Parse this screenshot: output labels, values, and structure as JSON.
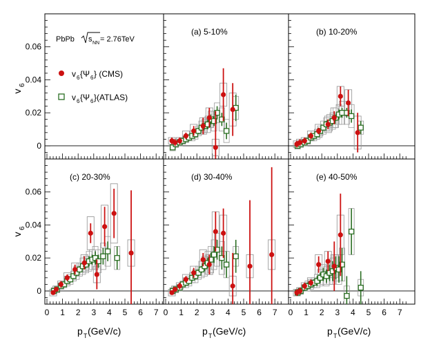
{
  "chart_data": {
    "type": "scatter",
    "grid": false,
    "x_axis": {
      "label_main": "p",
      "label_sub": "T",
      "label_unit": " (GeV/c)",
      "range": [
        0,
        8
      ],
      "ticks": [
        "0",
        "1",
        "2",
        "3",
        "4",
        "5",
        "6",
        "7"
      ]
    },
    "y_axis": {
      "label_main": "v",
      "label_sub": "6",
      "range": [
        -0.008,
        0.08
      ],
      "ticks": [
        "0",
        "0.02",
        "0.04",
        "0.06"
      ]
    },
    "info": {
      "system": "PbPb",
      "energy_prefix": "s",
      "energy_sub": "NN",
      "energy_value": " = 2.76TeV"
    },
    "legend": {
      "position": "top-left panel",
      "cms_main": "v",
      "cms_sub": "6",
      "cms_brace": "{Ψ",
      "cms_brace_sub": "6",
      "cms_suffix": "} (CMS)",
      "atlas_main": "v",
      "atlas_sub": "6",
      "atlas_brace": "{Ψ",
      "atlas_brace_sub": "6",
      "atlas_suffix": "}(ATLAS)",
      "cms_color": "#cc1111",
      "atlas_color": "#2a6e22"
    },
    "panels": [
      {
        "label": "(a) 5-10%",
        "cms": [
          {
            "x": 0.4,
            "y": 0.003,
            "e": 0.002,
            "s": 0.002
          },
          {
            "x": 0.6,
            "y": 0.002,
            "e": 0.002,
            "s": 0.002
          },
          {
            "x": 0.9,
            "y": 0.003,
            "e": 0.002,
            "s": 0.002
          },
          {
            "x": 1.3,
            "y": 0.006,
            "e": 0.002,
            "s": 0.003
          },
          {
            "x": 1.8,
            "y": 0.009,
            "e": 0.003,
            "s": 0.004
          },
          {
            "x": 2.4,
            "y": 0.012,
            "e": 0.005,
            "s": 0.005
          },
          {
            "x": 2.8,
            "y": 0.017,
            "e": 0.006,
            "s": 0.006
          },
          {
            "x": 3.2,
            "y": -0.001,
            "e": 0.022,
            "s": 0.005
          },
          {
            "x": 3.7,
            "y": 0.031,
            "e": 0.016,
            "s": 0.007
          },
          {
            "x": 4.3,
            "y": 0.022,
            "e": 0.016,
            "s": 0.01
          }
        ],
        "atlas": [
          {
            "x": 0.45,
            "y": -0.001,
            "e": 0.001,
            "s": 0.002
          },
          {
            "x": 0.65,
            "y": 0.001,
            "e": 0.001,
            "s": 0.002
          },
          {
            "x": 0.9,
            "y": 0.002,
            "e": 0.001,
            "s": 0.002
          },
          {
            "x": 1.1,
            "y": 0.003,
            "e": 0.001,
            "s": 0.002
          },
          {
            "x": 1.3,
            "y": 0.004,
            "e": 0.001,
            "s": 0.002
          },
          {
            "x": 1.5,
            "y": 0.005,
            "e": 0.001,
            "s": 0.002
          },
          {
            "x": 1.7,
            "y": 0.006,
            "e": 0.001,
            "s": 0.003
          },
          {
            "x": 1.9,
            "y": 0.007,
            "e": 0.001,
            "s": 0.003
          },
          {
            "x": 2.1,
            "y": 0.009,
            "e": 0.002,
            "s": 0.003
          },
          {
            "x": 2.3,
            "y": 0.011,
            "e": 0.002,
            "s": 0.004
          },
          {
            "x": 2.5,
            "y": 0.012,
            "e": 0.002,
            "s": 0.004
          },
          {
            "x": 2.7,
            "y": 0.013,
            "e": 0.003,
            "s": 0.005
          },
          {
            "x": 2.9,
            "y": 0.016,
            "e": 0.003,
            "s": 0.005
          },
          {
            "x": 3.1,
            "y": 0.015,
            "e": 0.003,
            "s": 0.006
          },
          {
            "x": 3.3,
            "y": 0.02,
            "e": 0.004,
            "s": 0.006
          },
          {
            "x": 3.6,
            "y": 0.016,
            "e": 0.004,
            "s": 0.007
          },
          {
            "x": 3.9,
            "y": 0.009,
            "e": 0.005,
            "s": 0.007
          },
          {
            "x": 4.5,
            "y": 0.023,
            "e": 0.008,
            "s": 0.007
          }
        ]
      },
      {
        "label": "(b) 10-20%",
        "cms": [
          {
            "x": 0.4,
            "y": 0.001,
            "e": 0.002,
            "s": 0.002
          },
          {
            "x": 0.6,
            "y": 0.002,
            "e": 0.002,
            "s": 0.002
          },
          {
            "x": 0.9,
            "y": 0.003,
            "e": 0.002,
            "s": 0.002
          },
          {
            "x": 1.3,
            "y": 0.006,
            "e": 0.002,
            "s": 0.003
          },
          {
            "x": 1.8,
            "y": 0.009,
            "e": 0.002,
            "s": 0.004
          },
          {
            "x": 2.4,
            "y": 0.013,
            "e": 0.003,
            "s": 0.005
          },
          {
            "x": 2.8,
            "y": 0.017,
            "e": 0.004,
            "s": 0.006
          },
          {
            "x": 3.2,
            "y": 0.03,
            "e": 0.006,
            "s": 0.006
          },
          {
            "x": 3.7,
            "y": 0.026,
            "e": 0.008,
            "s": 0.008
          },
          {
            "x": 4.3,
            "y": 0.008,
            "e": 0.012,
            "s": 0.01
          }
        ],
        "atlas": [
          {
            "x": 0.45,
            "y": 0.0,
            "e": 0.001,
            "s": 0.002
          },
          {
            "x": 0.65,
            "y": 0.001,
            "e": 0.001,
            "s": 0.002
          },
          {
            "x": 0.9,
            "y": 0.002,
            "e": 0.001,
            "s": 0.002
          },
          {
            "x": 1.1,
            "y": 0.003,
            "e": 0.001,
            "s": 0.002
          },
          {
            "x": 1.3,
            "y": 0.005,
            "e": 0.001,
            "s": 0.002
          },
          {
            "x": 1.5,
            "y": 0.006,
            "e": 0.001,
            "s": 0.003
          },
          {
            "x": 1.7,
            "y": 0.007,
            "e": 0.001,
            "s": 0.003
          },
          {
            "x": 1.9,
            "y": 0.009,
            "e": 0.001,
            "s": 0.003
          },
          {
            "x": 2.1,
            "y": 0.011,
            "e": 0.001,
            "s": 0.004
          },
          {
            "x": 2.3,
            "y": 0.013,
            "e": 0.002,
            "s": 0.004
          },
          {
            "x": 2.5,
            "y": 0.014,
            "e": 0.002,
            "s": 0.005
          },
          {
            "x": 2.7,
            "y": 0.015,
            "e": 0.002,
            "s": 0.005
          },
          {
            "x": 2.9,
            "y": 0.017,
            "e": 0.002,
            "s": 0.006
          },
          {
            "x": 3.1,
            "y": 0.019,
            "e": 0.003,
            "s": 0.006
          },
          {
            "x": 3.3,
            "y": 0.02,
            "e": 0.003,
            "s": 0.007
          },
          {
            "x": 3.6,
            "y": 0.02,
            "e": 0.003,
            "s": 0.007
          },
          {
            "x": 3.9,
            "y": 0.018,
            "e": 0.004,
            "s": 0.007
          },
          {
            "x": 4.5,
            "y": 0.011,
            "e": 0.004,
            "s": 0.004
          }
        ]
      },
      {
        "label": "(c) 20-30%",
        "cms": [
          {
            "x": 0.4,
            "y": -0.001,
            "e": 0.001,
            "s": 0.002
          },
          {
            "x": 0.6,
            "y": 0.001,
            "e": 0.001,
            "s": 0.002
          },
          {
            "x": 0.9,
            "y": 0.004,
            "e": 0.002,
            "s": 0.002
          },
          {
            "x": 1.3,
            "y": 0.008,
            "e": 0.002,
            "s": 0.003
          },
          {
            "x": 1.8,
            "y": 0.013,
            "e": 0.003,
            "s": 0.004
          },
          {
            "x": 2.4,
            "y": 0.017,
            "e": 0.004,
            "s": 0.005
          },
          {
            "x": 2.8,
            "y": 0.035,
            "e": 0.006,
            "s": 0.01
          },
          {
            "x": 3.2,
            "y": 0.01,
            "e": 0.009,
            "s": 0.005
          },
          {
            "x": 3.7,
            "y": 0.039,
            "e": 0.012,
            "s": 0.013
          },
          {
            "x": 4.3,
            "y": 0.047,
            "e": 0.015,
            "s": 0.018
          },
          {
            "x": 5.4,
            "y": 0.023,
            "e": 0.038,
            "s": 0.008
          }
        ],
        "atlas": [
          {
            "x": 0.45,
            "y": 0.0,
            "e": 0.001,
            "s": 0.002
          },
          {
            "x": 0.65,
            "y": 0.001,
            "e": 0.001,
            "s": 0.002
          },
          {
            "x": 0.9,
            "y": 0.003,
            "e": 0.001,
            "s": 0.002
          },
          {
            "x": 1.1,
            "y": 0.004,
            "e": 0.001,
            "s": 0.002
          },
          {
            "x": 1.3,
            "y": 0.006,
            "e": 0.001,
            "s": 0.003
          },
          {
            "x": 1.5,
            "y": 0.007,
            "e": 0.001,
            "s": 0.003
          },
          {
            "x": 1.7,
            "y": 0.009,
            "e": 0.001,
            "s": 0.003
          },
          {
            "x": 1.9,
            "y": 0.011,
            "e": 0.002,
            "s": 0.004
          },
          {
            "x": 2.1,
            "y": 0.013,
            "e": 0.002,
            "s": 0.004
          },
          {
            "x": 2.3,
            "y": 0.015,
            "e": 0.002,
            "s": 0.005
          },
          {
            "x": 2.5,
            "y": 0.016,
            "e": 0.002,
            "s": 0.005
          },
          {
            "x": 2.7,
            "y": 0.018,
            "e": 0.003,
            "s": 0.006
          },
          {
            "x": 2.9,
            "y": 0.019,
            "e": 0.003,
            "s": 0.006
          },
          {
            "x": 3.1,
            "y": 0.02,
            "e": 0.004,
            "s": 0.007
          },
          {
            "x": 3.3,
            "y": 0.018,
            "e": 0.004,
            "s": 0.007
          },
          {
            "x": 3.6,
            "y": 0.021,
            "e": 0.005,
            "s": 0.008
          },
          {
            "x": 3.9,
            "y": 0.024,
            "e": 0.006,
            "s": 0.009
          },
          {
            "x": 4.5,
            "y": 0.02,
            "e": 0.007,
            "s": 0.007
          }
        ]
      },
      {
        "label": "(d) 30-40%",
        "cms": [
          {
            "x": 0.4,
            "y": -0.001,
            "e": 0.001,
            "s": 0.002
          },
          {
            "x": 0.6,
            "y": 0.001,
            "e": 0.001,
            "s": 0.002
          },
          {
            "x": 0.9,
            "y": 0.003,
            "e": 0.002,
            "s": 0.002
          },
          {
            "x": 1.3,
            "y": 0.007,
            "e": 0.002,
            "s": 0.003
          },
          {
            "x": 1.8,
            "y": 0.011,
            "e": 0.003,
            "s": 0.004
          },
          {
            "x": 2.4,
            "y": 0.019,
            "e": 0.004,
            "s": 0.006
          },
          {
            "x": 2.8,
            "y": 0.016,
            "e": 0.006,
            "s": 0.006
          },
          {
            "x": 3.2,
            "y": 0.036,
            "e": 0.012,
            "s": 0.012
          },
          {
            "x": 3.7,
            "y": 0.035,
            "e": 0.015,
            "s": 0.011
          },
          {
            "x": 4.3,
            "y": 0.003,
            "e": 0.02,
            "s": 0.006
          },
          {
            "x": 5.4,
            "y": 0.015,
            "e": 0.04,
            "s": 0.007
          },
          {
            "x": 6.8,
            "y": 0.022,
            "e": 0.053,
            "s": 0.009
          }
        ],
        "atlas": [
          {
            "x": 0.45,
            "y": 0.0,
            "e": 0.001,
            "s": 0.002
          },
          {
            "x": 0.65,
            "y": 0.001,
            "e": 0.001,
            "s": 0.002
          },
          {
            "x": 0.9,
            "y": 0.002,
            "e": 0.001,
            "s": 0.002
          },
          {
            "x": 1.1,
            "y": 0.004,
            "e": 0.001,
            "s": 0.002
          },
          {
            "x": 1.3,
            "y": 0.005,
            "e": 0.001,
            "s": 0.003
          },
          {
            "x": 1.5,
            "y": 0.006,
            "e": 0.001,
            "s": 0.003
          },
          {
            "x": 1.7,
            "y": 0.008,
            "e": 0.002,
            "s": 0.003
          },
          {
            "x": 1.9,
            "y": 0.009,
            "e": 0.002,
            "s": 0.004
          },
          {
            "x": 2.1,
            "y": 0.011,
            "e": 0.002,
            "s": 0.004
          },
          {
            "x": 2.3,
            "y": 0.013,
            "e": 0.002,
            "s": 0.005
          },
          {
            "x": 2.5,
            "y": 0.015,
            "e": 0.003,
            "s": 0.006
          },
          {
            "x": 2.7,
            "y": 0.017,
            "e": 0.003,
            "s": 0.007
          },
          {
            "x": 2.9,
            "y": 0.019,
            "e": 0.004,
            "s": 0.008
          },
          {
            "x": 3.1,
            "y": 0.022,
            "e": 0.005,
            "s": 0.009
          },
          {
            "x": 3.3,
            "y": 0.025,
            "e": 0.006,
            "s": 0.01
          },
          {
            "x": 3.6,
            "y": 0.02,
            "e": 0.007,
            "s": 0.01
          },
          {
            "x": 3.9,
            "y": 0.016,
            "e": 0.008,
            "s": 0.008
          },
          {
            "x": 4.5,
            "y": 0.021,
            "e": 0.01,
            "s": 0.006
          }
        ]
      },
      {
        "label": "(e) 40-50%",
        "cms": [
          {
            "x": 0.4,
            "y": -0.001,
            "e": 0.002,
            "s": 0.002
          },
          {
            "x": 0.6,
            "y": 0.0,
            "e": 0.002,
            "s": 0.002
          },
          {
            "x": 0.9,
            "y": 0.003,
            "e": 0.002,
            "s": 0.002
          },
          {
            "x": 1.3,
            "y": 0.005,
            "e": 0.002,
            "s": 0.003
          },
          {
            "x": 1.8,
            "y": 0.016,
            "e": 0.005,
            "s": 0.006
          },
          {
            "x": 2.4,
            "y": 0.018,
            "e": 0.006,
            "s": 0.006
          },
          {
            "x": 2.8,
            "y": 0.015,
            "e": 0.015,
            "s": 0.007
          },
          {
            "x": 3.2,
            "y": 0.034,
            "e": 0.025,
            "s": 0.012
          }
        ],
        "atlas": [
          {
            "x": 0.45,
            "y": -0.001,
            "e": 0.002,
            "s": 0.002
          },
          {
            "x": 0.65,
            "y": 0.0,
            "e": 0.002,
            "s": 0.002
          },
          {
            "x": 0.9,
            "y": 0.002,
            "e": 0.002,
            "s": 0.002
          },
          {
            "x": 1.1,
            "y": 0.003,
            "e": 0.002,
            "s": 0.003
          },
          {
            "x": 1.3,
            "y": 0.004,
            "e": 0.002,
            "s": 0.003
          },
          {
            "x": 1.5,
            "y": 0.005,
            "e": 0.002,
            "s": 0.003
          },
          {
            "x": 1.7,
            "y": 0.006,
            "e": 0.003,
            "s": 0.004
          },
          {
            "x": 1.9,
            "y": 0.008,
            "e": 0.003,
            "s": 0.005
          },
          {
            "x": 2.1,
            "y": 0.01,
            "e": 0.004,
            "s": 0.006
          },
          {
            "x": 2.3,
            "y": 0.009,
            "e": 0.004,
            "s": 0.006
          },
          {
            "x": 2.5,
            "y": 0.011,
            "e": 0.005,
            "s": 0.007
          },
          {
            "x": 2.7,
            "y": 0.012,
            "e": 0.006,
            "s": 0.008
          },
          {
            "x": 2.9,
            "y": 0.014,
            "e": 0.007,
            "s": 0.008
          },
          {
            "x": 3.1,
            "y": 0.013,
            "e": 0.008,
            "s": 0.009
          },
          {
            "x": 3.3,
            "y": 0.016,
            "e": 0.01,
            "s": 0.01
          },
          {
            "x": 3.6,
            "y": -0.003,
            "e": 0.012,
            "s": 0.006
          },
          {
            "x": 3.9,
            "y": 0.036,
            "e": 0.014,
            "s": 0.014
          },
          {
            "x": 4.5,
            "y": 0.002,
            "e": 0.01,
            "s": 0.005
          }
        ]
      }
    ]
  }
}
